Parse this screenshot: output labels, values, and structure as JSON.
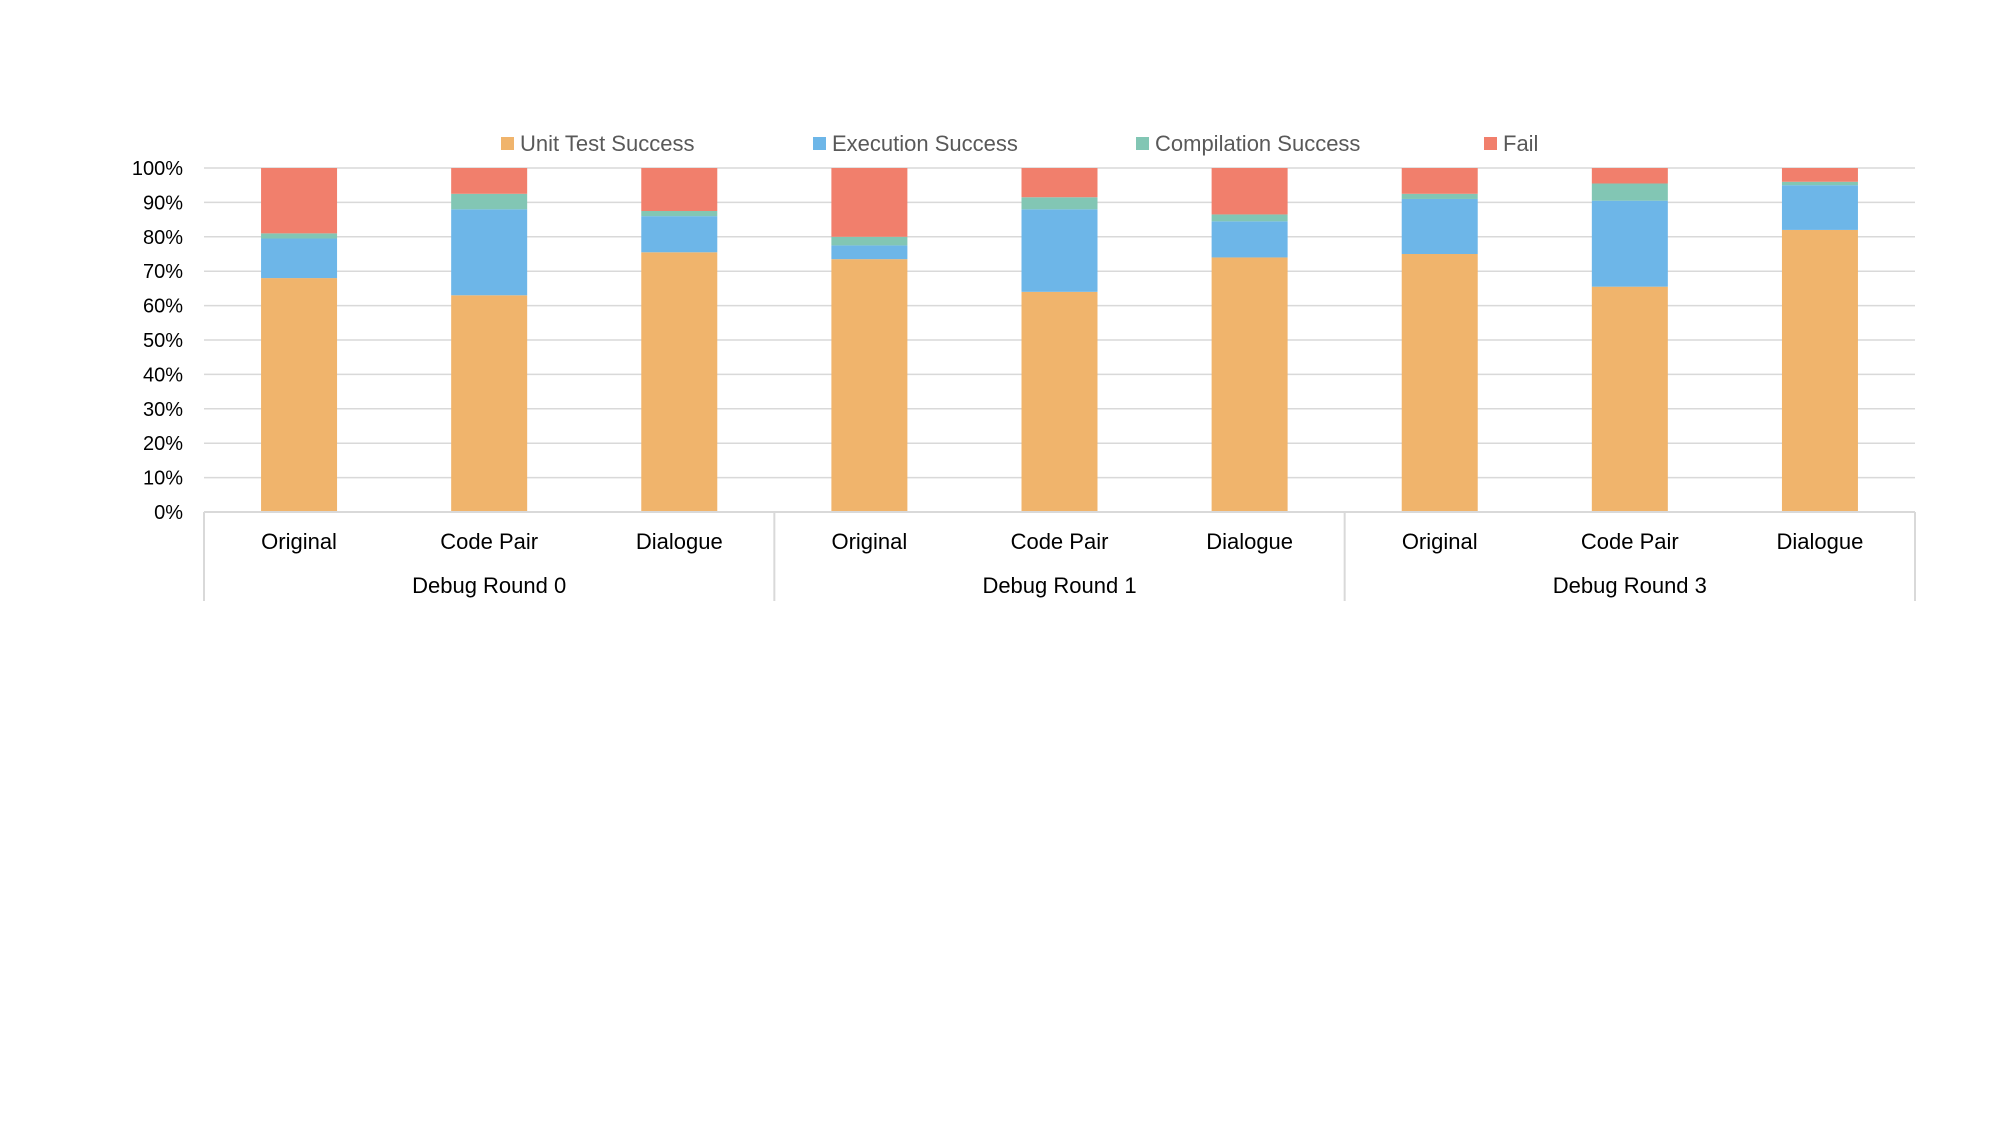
{
  "chart_data": {
    "type": "bar",
    "stacked": "percent",
    "title": "",
    "xlabel": "",
    "ylabel": "",
    "ylim": [
      0,
      100
    ],
    "yticks": [
      "0%",
      "10%",
      "20%",
      "30%",
      "40%",
      "50%",
      "60%",
      "70%",
      "80%",
      "90%",
      "100%"
    ],
    "grid": true,
    "legend_position": "top",
    "groups": [
      {
        "label": "Debug Round 0",
        "categories": [
          "Original",
          "Code Pair",
          "Dialogue"
        ]
      },
      {
        "label": "Debug Round 1",
        "categories": [
          "Original",
          "Code Pair",
          "Dialogue"
        ]
      },
      {
        "label": "Debug Round 3",
        "categories": [
          "Original",
          "Code Pair",
          "Dialogue"
        ]
      }
    ],
    "series": [
      {
        "name": "Unit Test Success",
        "color": "#F0B46C",
        "values": [
          68,
          63,
          75.5,
          73.5,
          64,
          74,
          75,
          65.5,
          82
        ]
      },
      {
        "name": "Execution Success",
        "color": "#6DB6E8",
        "values": [
          11.5,
          25,
          10.5,
          4,
          24,
          10.5,
          16,
          25,
          13
        ]
      },
      {
        "name": "Compilation Success",
        "color": "#82C6B4",
        "values": [
          1.5,
          4.5,
          1.5,
          2.5,
          3.5,
          2,
          1.5,
          5,
          1
        ]
      },
      {
        "name": "Fail",
        "color": "#F17F6C",
        "values": [
          19,
          7.5,
          12.5,
          20,
          8.5,
          13.5,
          7.5,
          4.5,
          4
        ]
      }
    ]
  }
}
